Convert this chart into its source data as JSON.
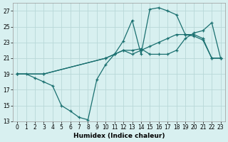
{
  "xlabel": "Humidex (Indice chaleur)",
  "bg_color": "#d8f0f0",
  "line_color": "#1a7070",
  "grid_color": "#b8d8d8",
  "xlim": [
    -0.5,
    23.5
  ],
  "ylim": [
    13,
    28
  ],
  "xticks": [
    0,
    1,
    2,
    3,
    4,
    5,
    6,
    7,
    8,
    9,
    10,
    11,
    12,
    13,
    14,
    15,
    16,
    17,
    18,
    19,
    20,
    21,
    22,
    23
  ],
  "yticks": [
    13,
    15,
    17,
    19,
    21,
    23,
    25,
    27
  ],
  "line1": {
    "x": [
      0,
      1,
      2,
      3,
      4,
      5,
      6,
      7,
      8,
      9,
      10,
      11,
      12,
      13,
      14,
      15,
      16,
      17,
      18,
      19,
      20,
      21,
      22,
      23
    ],
    "y": [
      19,
      19,
      18.5,
      18,
      17.5,
      15,
      14.3,
      13.5,
      13.2,
      18.3,
      20.2,
      21.5,
      23.2,
      25.8,
      21.5,
      27.2,
      27.4,
      27.0,
      26.5,
      24.0,
      23.8,
      23.3,
      21.0,
      21.0
    ]
  },
  "line2": {
    "x": [
      0,
      3,
      10,
      11,
      12,
      13,
      14,
      15,
      16,
      17,
      18,
      19,
      20,
      21,
      22,
      23
    ],
    "y": [
      19,
      19,
      21.0,
      21.5,
      22.0,
      21.5,
      22.0,
      22.5,
      23.0,
      23.5,
      24.0,
      24.0,
      24.0,
      23.5,
      21.0,
      21.0
    ]
  },
  "line3": {
    "x": [
      0,
      3,
      10,
      11,
      12,
      13,
      14,
      15,
      16,
      17,
      18,
      19,
      20,
      21,
      22,
      23
    ],
    "y": [
      19,
      19,
      21.0,
      21.5,
      22.0,
      22.0,
      22.2,
      21.5,
      21.5,
      21.5,
      22.0,
      23.5,
      24.2,
      24.5,
      25.5,
      21.0
    ]
  }
}
